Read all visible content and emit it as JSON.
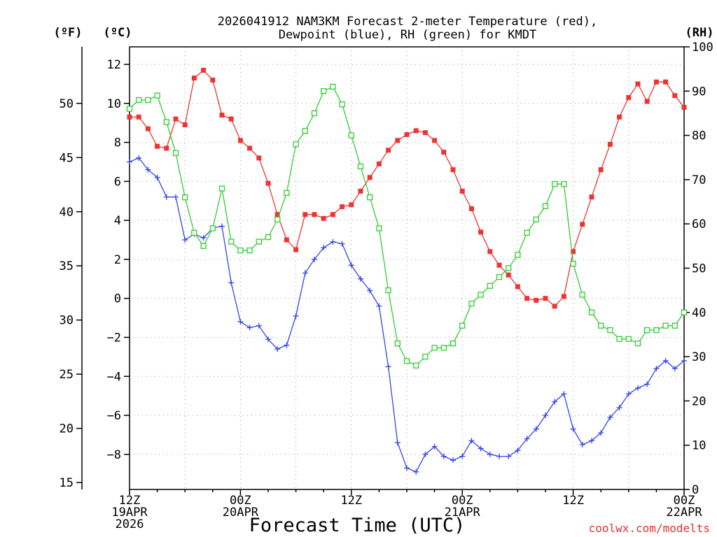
{
  "chart_data": {
    "type": "line",
    "title_line1": "2026041912 NAM3KM Forecast 2-meter Temperature (red),",
    "title_line2": "Dewpoint (blue), RH (green) for KMDT",
    "xlabel": "Forecast Time (UTC)",
    "credit": "coolwx.com/modelts",
    "unit_labels": {
      "fahrenheit": "(ºF)",
      "celsius": "(ºC)",
      "rh": "(RH)"
    },
    "x_range_hours": [
      0,
      60
    ],
    "x_ticks": [
      {
        "hour": 0,
        "lines": [
          "12Z",
          "19APR",
          "2026"
        ]
      },
      {
        "hour": 12,
        "lines": [
          "00Z",
          "20APR"
        ]
      },
      {
        "hour": 24,
        "lines": [
          "12Z"
        ]
      },
      {
        "hour": 36,
        "lines": [
          "00Z",
          "21APR"
        ]
      },
      {
        "hour": 48,
        "lines": [
          "12Z"
        ]
      },
      {
        "hour": 60,
        "lines": [
          "00Z",
          "22APR"
        ]
      }
    ],
    "celsius_axis": {
      "range": [
        -9.8,
        12.9
      ],
      "ticks": [
        12,
        10,
        8,
        6,
        4,
        2,
        0,
        -2,
        -4,
        -6,
        -8
      ]
    },
    "fahrenheit_axis": {
      "ticks": [
        50,
        45,
        40,
        35,
        30,
        25,
        20,
        15
      ]
    },
    "rh_axis": {
      "range": [
        0,
        100
      ],
      "ticks": [
        100,
        90,
        80,
        70,
        60,
        50,
        40,
        30,
        20,
        10,
        0
      ]
    },
    "series": [
      {
        "name": "2-meter Temperature",
        "units": "C",
        "color": "#ee3333",
        "marker": "filled-square",
        "values": [
          9.3,
          9.3,
          8.7,
          7.8,
          7.7,
          9.2,
          8.9,
          11.3,
          11.7,
          11.2,
          9.4,
          9.2,
          8.1,
          7.7,
          7.2,
          5.9,
          4.3,
          3.0,
          2.5,
          4.3,
          4.3,
          4.1,
          4.3,
          4.7,
          4.8,
          5.5,
          6.2,
          6.9,
          7.6,
          8.1,
          8.4,
          8.6,
          8.5,
          8.1,
          7.5,
          6.6,
          5.5,
          4.6,
          3.4,
          2.4,
          1.7,
          1.2,
          0.6,
          0.0,
          -0.1,
          0.0,
          -0.4,
          0.1,
          2.4,
          3.8,
          5.2,
          6.6,
          7.9,
          9.3,
          10.3,
          11.0,
          10.1,
          11.1,
          11.1,
          10.4,
          9.8
        ]
      },
      {
        "name": "Dewpoint",
        "units": "C",
        "color": "#3344ee",
        "marker": "plus",
        "values": [
          7.0,
          7.2,
          6.6,
          6.2,
          5.2,
          5.2,
          3.0,
          3.3,
          3.1,
          3.6,
          3.7,
          0.8,
          -1.2,
          -1.5,
          -1.4,
          -2.1,
          -2.6,
          -2.4,
          -0.9,
          1.3,
          2.0,
          2.6,
          2.9,
          2.8,
          1.7,
          1.0,
          0.4,
          -0.4,
          -3.5,
          -7.4,
          -8.7,
          -8.9,
          -8.0,
          -7.6,
          -8.1,
          -8.3,
          -8.1,
          -7.3,
          -7.7,
          -8.0,
          -8.1,
          -8.1,
          -7.8,
          -7.2,
          -6.7,
          -6.0,
          -5.3,
          -4.9,
          -6.7,
          -7.5,
          -7.3,
          -6.9,
          -6.1,
          -5.6,
          -4.9,
          -4.6,
          -4.4,
          -3.6,
          -3.2,
          -3.6,
          -3.2
        ]
      },
      {
        "name": "RH",
        "units": "%",
        "color": "#33cc33",
        "marker": "open-square",
        "values": [
          86,
          88,
          88,
          89,
          83,
          76,
          66,
          58,
          55,
          59,
          68,
          56,
          54,
          54,
          56,
          57,
          61,
          67,
          78,
          81,
          85,
          90,
          91,
          87,
          80,
          73,
          66,
          59,
          45,
          33,
          29,
          28,
          30,
          32,
          32,
          33,
          37,
          42,
          44,
          46,
          48,
          50,
          53,
          58,
          61,
          64,
          69,
          69,
          51,
          44,
          40,
          37,
          36,
          34,
          34,
          33,
          36,
          36,
          37,
          37,
          40
        ]
      }
    ]
  }
}
